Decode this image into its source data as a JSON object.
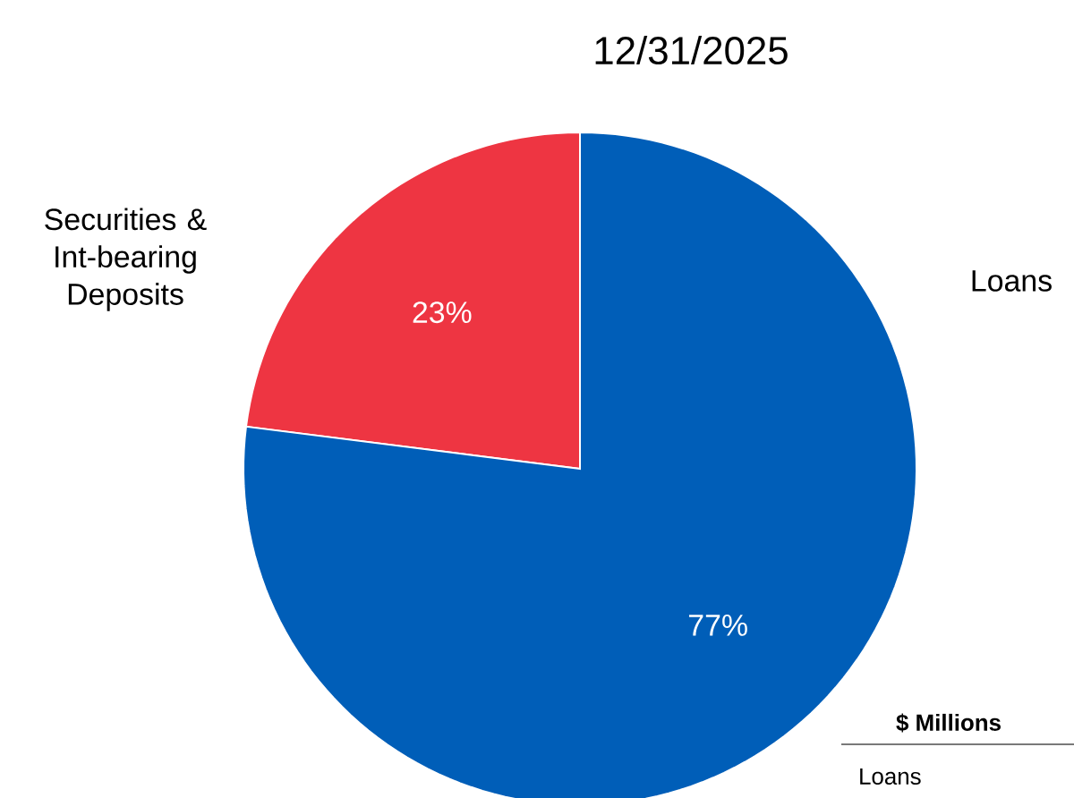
{
  "chart_data": {
    "type": "pie",
    "title": "12/31/2025",
    "categories": [
      "Securities & Int-bearing Deposits",
      "Loans"
    ],
    "values": [
      23,
      77
    ],
    "colors": [
      "#ee3542",
      "#005eb8"
    ],
    "value_labels": [
      "23%",
      "77%"
    ],
    "annotations": [
      "**$ Millions**",
      "Loans"
    ]
  }
}
